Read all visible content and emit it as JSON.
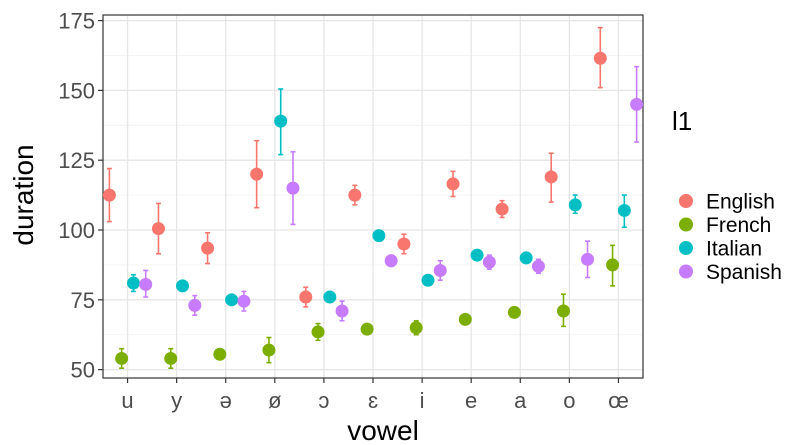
{
  "chart_data": {
    "type": "scatter",
    "xlabel": "vowel",
    "ylabel": "duration",
    "ylim": [
      47,
      177
    ],
    "yticks": [
      50,
      75,
      100,
      125,
      150,
      175
    ],
    "grid": true,
    "categories": [
      "u",
      "y",
      "ə",
      "ø",
      "ɔ",
      "ɛ",
      "i",
      "e",
      "a",
      "o",
      "œ"
    ],
    "legend": {
      "title": "l1",
      "position": "right"
    },
    "series": [
      {
        "name": "English",
        "color": "#F8766D",
        "values": [
          112.5,
          100.5,
          93.5,
          120,
          76,
          112.5,
          95,
          116.5,
          107.5,
          119,
          161.5
        ],
        "lower": [
          103,
          91.5,
          88,
          108,
          72.5,
          109,
          91.5,
          112,
          104.5,
          110,
          151
        ],
        "upper": [
          122,
          109.5,
          99,
          132,
          79.5,
          116,
          98.5,
          121,
          110.5,
          127.5,
          172.5
        ]
      },
      {
        "name": "French",
        "color": "#7CAE00",
        "values": [
          54,
          54,
          55.5,
          57,
          63.5,
          64.5,
          65,
          68,
          70.5,
          71,
          87.5
        ],
        "lower": [
          50.5,
          50.5,
          55.5,
          52.5,
          60.5,
          64.5,
          62.5,
          68,
          70.5,
          65.5,
          80
        ],
        "upper": [
          57.5,
          57.5,
          55.5,
          61.5,
          66.5,
          64.5,
          67.5,
          68,
          70.5,
          77,
          94.5
        ]
      },
      {
        "name": "Italian",
        "color": "#00BFC4",
        "values": [
          81,
          80,
          75,
          139,
          76,
          98,
          82,
          91,
          90,
          109,
          107
        ],
        "lower": [
          78,
          80,
          75,
          127,
          76,
          98,
          82,
          91,
          90,
          106,
          101
        ],
        "upper": [
          84,
          80,
          75,
          150.5,
          76,
          98,
          82,
          91,
          90,
          112.5,
          112.5
        ]
      },
      {
        "name": "Spanish",
        "color": "#C77CFF",
        "values": [
          80.5,
          73,
          74.5,
          115,
          71,
          89,
          85.5,
          88.5,
          87,
          89.5,
          145
        ],
        "lower": [
          76,
          69.5,
          71,
          102,
          67.5,
          87,
          82,
          86,
          84.5,
          83,
          131.5
        ],
        "upper": [
          85.5,
          76.5,
          78,
          128,
          74.5,
          91,
          89,
          91,
          89.5,
          96,
          158.5
        ]
      }
    ]
  }
}
